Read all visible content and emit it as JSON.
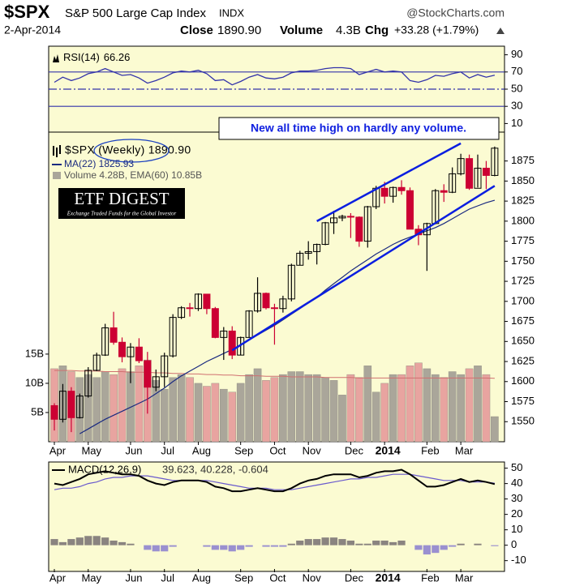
{
  "header": {
    "symbol": "$SPX",
    "name": "S&P 500 Large Cap Index",
    "exchange": "INDX",
    "source": "@StockCharts.com",
    "date": "2-Apr-2014",
    "close_label": "Close",
    "close": "1890.90",
    "volume_label": "Volume",
    "volume": "4.3B",
    "change_label": "Chg",
    "change": "+33.28 (+1.79%)"
  },
  "chart_data": [
    {
      "type": "line",
      "name": "RSI(14)",
      "last_label": "66.26",
      "ylim": [
        0,
        100
      ],
      "yticks": [
        10,
        30,
        50,
        70,
        90
      ],
      "levels": [
        30,
        50,
        70
      ],
      "color": "#3333aa",
      "values": [
        58,
        64,
        60,
        63,
        68,
        70,
        74,
        70,
        66,
        67,
        63,
        57,
        60,
        64,
        69,
        71,
        70,
        72,
        68,
        60,
        61,
        55,
        59,
        64,
        67,
        63,
        62,
        64,
        69,
        71,
        71,
        72,
        74,
        75,
        75,
        74,
        67,
        70,
        73,
        70,
        71,
        70,
        60,
        58,
        61,
        66,
        65,
        68,
        70,
        63,
        67,
        64,
        66.26
      ]
    },
    {
      "type": "candlestick",
      "legend": "$SPX (Weekly) 1890.90",
      "annotation": "New all time high on hardly any volume.",
      "logo": {
        "title": "ETF DIGEST",
        "tagline": "Exchange Traded Funds for the Global Investor"
      },
      "categories": [
        "Apr",
        null,
        null,
        null,
        "May",
        null,
        null,
        null,
        null,
        "Jun",
        null,
        null,
        null,
        "Jul",
        null,
        null,
        null,
        "Aug",
        null,
        null,
        null,
        null,
        "Sep",
        null,
        null,
        null,
        "Oct",
        null,
        null,
        null,
        "Nov",
        null,
        null,
        null,
        null,
        "Dec",
        null,
        null,
        null,
        "2014",
        null,
        null,
        null,
        null,
        "Feb",
        null,
        null,
        null,
        "Mar",
        null,
        null,
        null,
        null
      ],
      "ylim": [
        1525,
        1911
      ],
      "yticks": [
        1550,
        1575,
        1600,
        1625,
        1650,
        1675,
        1700,
        1725,
        1750,
        1775,
        1800,
        1825,
        1850,
        1875
      ],
      "up_color": "#000000",
      "down_color": "#cc0033",
      "open": [
        1570,
        1553,
        1588,
        1555,
        1582,
        1614,
        1633,
        1667,
        1649,
        1631,
        1643,
        1626,
        1593,
        1606,
        1632,
        1680,
        1692,
        1691,
        1709,
        1691,
        1655,
        1663,
        1633,
        1655,
        1688,
        1710,
        1692,
        1691,
        1703,
        1745,
        1760,
        1762,
        1771,
        1798,
        1804,
        1806,
        1805,
        1775,
        1818,
        1841,
        1831,
        1842,
        1838,
        1790,
        1783,
        1797,
        1838,
        1836,
        1859,
        1878,
        1841,
        1866,
        1857
      ],
      "high": [
        1573,
        1597,
        1593,
        1585,
        1618,
        1636,
        1672,
        1687,
        1655,
        1648,
        1654,
        1637,
        1615,
        1636,
        1684,
        1694,
        1698,
        1710,
        1709,
        1693,
        1668,
        1669,
        1656,
        1689,
        1730,
        1711,
        1697,
        1707,
        1747,
        1763,
        1775,
        1772,
        1799,
        1813,
        1808,
        1810,
        1806,
        1819,
        1844,
        1849,
        1843,
        1851,
        1842,
        1795,
        1798,
        1840,
        1846,
        1867,
        1884,
        1883,
        1883,
        1875,
        1893
      ],
      "low": [
        1539,
        1549,
        1537,
        1554,
        1580,
        1613,
        1632,
        1646,
        1624,
        1598,
        1623,
        1560,
        1588,
        1593,
        1630,
        1678,
        1681,
        1688,
        1684,
        1654,
        1627,
        1628,
        1633,
        1655,
        1686,
        1690,
        1646,
        1686,
        1700,
        1745,
        1752,
        1746,
        1770,
        1784,
        1800,
        1779,
        1768,
        1767,
        1815,
        1822,
        1823,
        1833,
        1790,
        1770,
        1738,
        1796,
        1824,
        1835,
        1857,
        1839,
        1842,
        1840,
        1856
      ],
      "close": [
        1553,
        1588,
        1555,
        1582,
        1614,
        1633,
        1667,
        1649,
        1631,
        1643,
        1626,
        1593,
        1606,
        1632,
        1680,
        1692,
        1691,
        1709,
        1691,
        1655,
        1663,
        1633,
        1655,
        1688,
        1710,
        1692,
        1691,
        1703,
        1745,
        1760,
        1762,
        1771,
        1798,
        1804,
        1806,
        1805,
        1775,
        1818,
        1841,
        1831,
        1842,
        1838,
        1790,
        1783,
        1797,
        1838,
        1836,
        1859,
        1878,
        1841,
        1866,
        1857,
        1891
      ],
      "ma": {
        "name": "MA(22) 1825.93",
        "color": "#1a2a80",
        "values": [
          null,
          null,
          null,
          1535,
          1541,
          1547,
          1553,
          1558,
          1563,
          1568,
          1573,
          1578,
          1585,
          1592,
          1600,
          1607,
          1613,
          1619,
          1625,
          1630,
          1635,
          1640,
          1646,
          1652,
          1658,
          1664,
          1670,
          1677,
          1684,
          1691,
          1698,
          1705,
          1714,
          1722,
          1730,
          1738,
          1745,
          1752,
          1759,
          1765,
          1771,
          1776,
          1780,
          1784,
          1788,
          1792,
          1797,
          1803,
          1809,
          1815,
          1819,
          1823,
          1826
        ]
      },
      "volume": {
        "name": "Volume 4.28B, EMA(60) 10.85B",
        "up_color": "#aaa69a",
        "down_color": "#e8a4a0",
        "ema_color": "#d07070",
        "vlim": [
          0,
          53
        ],
        "vticks": [
          {
            "value": 5,
            "label": "5B"
          },
          {
            "value": 10,
            "label": "10B"
          },
          {
            "value": 15,
            "label": "15B"
          }
        ],
        "values": [
          12.5,
          13.0,
          12.0,
          11.0,
          11.5,
          11.0,
          12.0,
          11.5,
          12.5,
          12.0,
          13.0,
          14.0,
          10.5,
          9.0,
          11.0,
          11.5,
          11.0,
          10.0,
          9.5,
          10.0,
          9.0,
          8.5,
          10.0,
          11.5,
          12.5,
          10.5,
          11.0,
          11.5,
          12.0,
          12.0,
          11.5,
          11.5,
          11.0,
          10.5,
          8.0,
          11.5,
          11.0,
          13.0,
          8.5,
          10.0,
          11.5,
          11.5,
          13.0,
          13.5,
          12.5,
          11.5,
          11.0,
          12.0,
          11.5,
          12.5,
          13.0,
          11.5,
          4.3
        ],
        "ema": [
          12.2,
          12.2,
          12.2,
          12.1,
          12.1,
          12.1,
          12.0,
          12.0,
          12.0,
          11.9,
          11.9,
          11.9,
          11.8,
          11.8,
          11.7,
          11.7,
          11.6,
          11.6,
          11.5,
          11.5,
          11.4,
          11.4,
          11.3,
          11.3,
          11.3,
          11.2,
          11.2,
          11.2,
          11.1,
          11.1,
          11.1,
          11.1,
          11.0,
          11.0,
          11.0,
          11.0,
          10.9,
          10.9,
          10.9,
          10.9,
          10.9,
          10.9,
          10.9,
          10.9,
          10.9,
          10.9,
          10.9,
          10.9,
          10.9,
          10.9,
          10.9,
          10.9,
          10.85
        ]
      },
      "trendlines": [
        {
          "x": [
            31,
            48
          ],
          "y": [
            1800,
            1897
          ],
          "color": "#0a1ee0"
        },
        {
          "x": [
            21,
            52
          ],
          "y": [
            1639,
            1844
          ],
          "color": "#0a1ee0"
        }
      ]
    },
    {
      "type": "macd",
      "name": "MACD(12,26,9)",
      "legend_values": "39.623, 40.228, -0.604",
      "ylim": [
        -17,
        54
      ],
      "yticks": [
        -10,
        0,
        10,
        20,
        30,
        40,
        50
      ],
      "macd_color": "#000000",
      "signal_color": "#6a5acd",
      "hist_pos_color": "#8a8480",
      "hist_neg_color": "#9a90d0",
      "macd": [
        40,
        39,
        41,
        43,
        46,
        47,
        48,
        47,
        46,
        46,
        45,
        42,
        40,
        39,
        41,
        42,
        42,
        42,
        41,
        38,
        37,
        35,
        35,
        36,
        37,
        36,
        35,
        35,
        37,
        40,
        42,
        43,
        45,
        46,
        46,
        46,
        44,
        45,
        47,
        48,
        48,
        49,
        46,
        42,
        38,
        38,
        39,
        41,
        43,
        41,
        42,
        41,
        39.623
      ],
      "signal": [
        36,
        37,
        37,
        38,
        40,
        41,
        43,
        44,
        44,
        45,
        45,
        45,
        44,
        43,
        42,
        42,
        42,
        42,
        42,
        41,
        40,
        39,
        38,
        37,
        37,
        37,
        36,
        36,
        36,
        37,
        38,
        39,
        40,
        41,
        42,
        43,
        43,
        44,
        44,
        45,
        46,
        46,
        46,
        45,
        44,
        43,
        42,
        42,
        42,
        41,
        41,
        41,
        40.228
      ],
      "histogram": [
        4,
        2,
        4,
        5,
        6,
        6,
        5,
        3,
        2,
        1,
        0,
        -3,
        -4,
        -4,
        -1,
        0,
        0,
        0,
        -1,
        -3,
        -3,
        -4,
        -3,
        -1,
        0,
        -1,
        -1,
        -1,
        1,
        3,
        4,
        4,
        5,
        5,
        4,
        3,
        1,
        1,
        3,
        3,
        2,
        3,
        0,
        -3,
        -6,
        -5,
        -3,
        -1,
        1,
        0,
        1,
        0,
        -0.604
      ]
    }
  ]
}
